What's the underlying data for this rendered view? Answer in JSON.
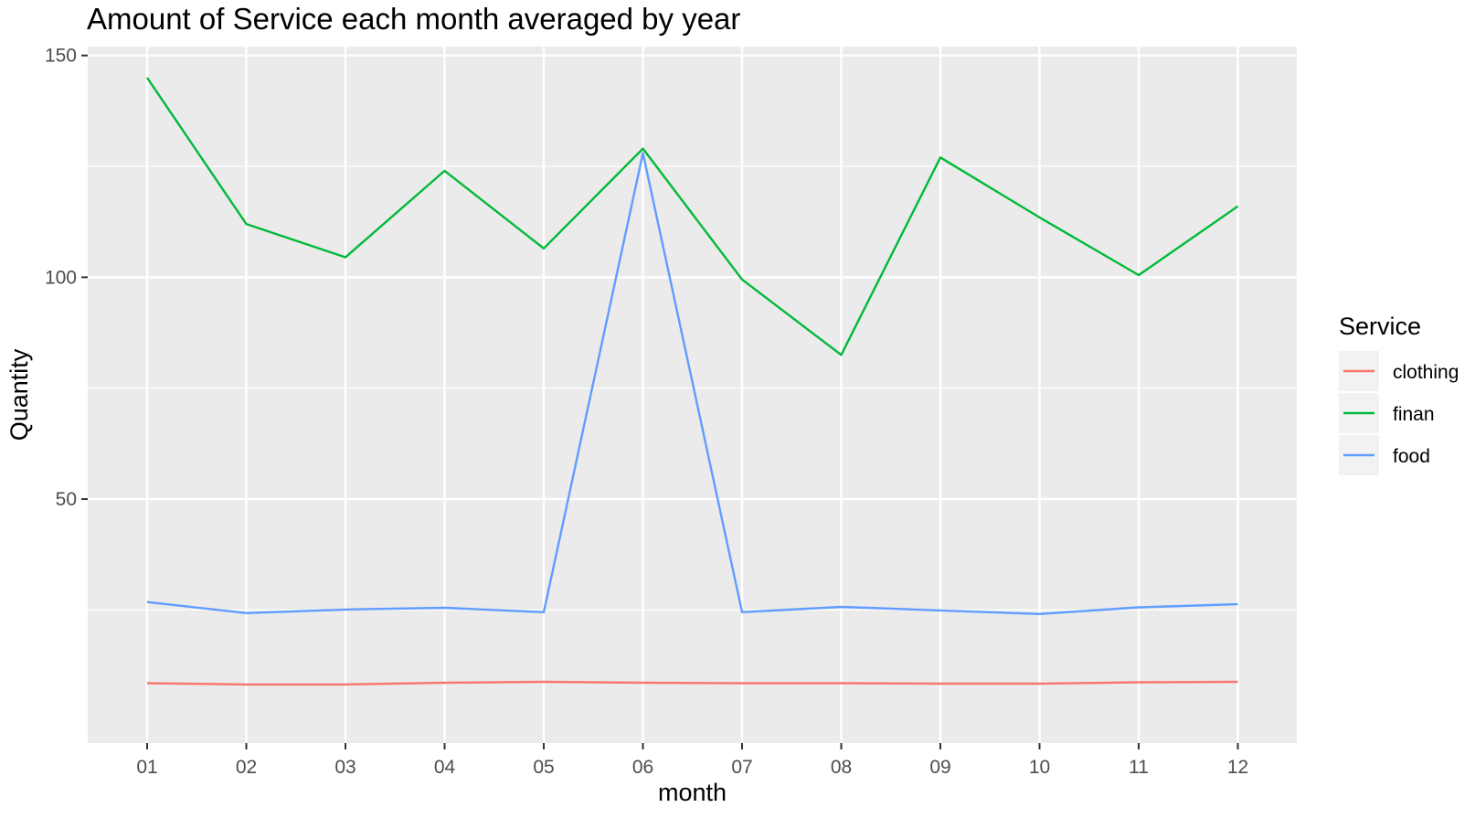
{
  "chart_data": {
    "type": "line",
    "title": "Amount of Service each month averaged by year",
    "xlabel": "month",
    "ylabel": "Quantity",
    "categories": [
      "01",
      "02",
      "03",
      "04",
      "05",
      "06",
      "07",
      "08",
      "09",
      "10",
      "11",
      "12"
    ],
    "ylim": [
      -5,
      152
    ],
    "y_ticks": [
      50,
      100,
      150
    ],
    "y_tick_labels": [
      "50",
      "100",
      "150"
    ],
    "grid": true,
    "panel_background": "#ebebeb",
    "grid_color": "#ffffff",
    "legend": {
      "title": "Service",
      "position": "right"
    },
    "series": [
      {
        "name": "clothing",
        "color": "#f8766d",
        "values": [
          8.5,
          8.2,
          8.2,
          8.6,
          8.8,
          8.6,
          8.5,
          8.5,
          8.4,
          8.4,
          8.7,
          8.8
        ]
      },
      {
        "name": "finan",
        "color": "#00ba38",
        "values": [
          145,
          112,
          104.5,
          124,
          106.5,
          129,
          99.5,
          82.5,
          127,
          113.5,
          100.5,
          116
        ]
      },
      {
        "name": "food",
        "color": "#619cff",
        "values": [
          26.8,
          24.3,
          25.1,
          25.5,
          24.5,
          128,
          24.5,
          25.7,
          24.9,
          24.1,
          25.6,
          26.3
        ]
      }
    ]
  }
}
